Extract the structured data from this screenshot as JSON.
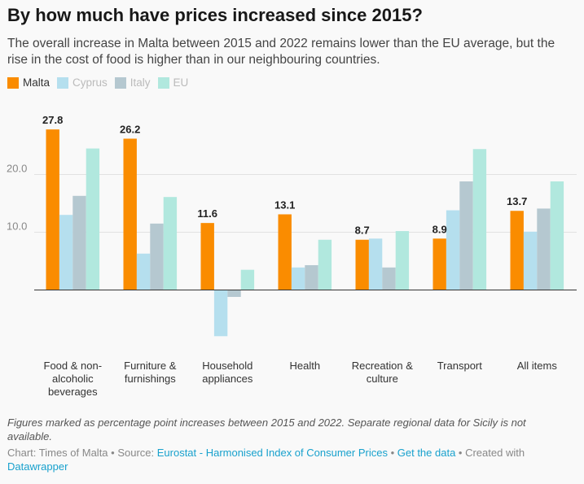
{
  "title": "By how much have prices increased since 2015?",
  "subtitle": "The overall increase in Malta between 2015 and 2022 remains lower than the EU average, but the rise in the cost of food is higher than in our neighbouring countries.",
  "legend": [
    {
      "name": "Malta",
      "color": "#fa8c00"
    },
    {
      "name": "Cyprus",
      "color": "#b5dfee"
    },
    {
      "name": "Italy",
      "color": "#b5c8d0"
    },
    {
      "name": "EU",
      "color": "#b1e8de"
    }
  ],
  "chart_data": {
    "type": "bar",
    "categories": [
      "Food & non-alcoholic beverages",
      "Furniture & furnishings",
      "Household appliances",
      "Health",
      "Recreation & culture",
      "Transport",
      "All items"
    ],
    "category_label_lines": [
      [
        "Food & non-",
        "alcoholic",
        "beverages"
      ],
      [
        "Furniture &",
        "furnishings"
      ],
      [
        "Household",
        "appliances"
      ],
      [
        "Health"
      ],
      [
        "Recreation &",
        "culture"
      ],
      [
        "Transport"
      ],
      [
        "All items"
      ]
    ],
    "series": [
      {
        "name": "Malta",
        "values": [
          27.8,
          26.2,
          11.6,
          13.1,
          8.7,
          8.9,
          13.7
        ],
        "labels": [
          "27.8",
          "26.2",
          "11.6",
          "13.1",
          "8.7",
          "8.9",
          "13.7"
        ]
      },
      {
        "name": "Cyprus",
        "values": [
          13.0,
          6.3,
          -8.0,
          3.9,
          8.9,
          13.8,
          10.1
        ]
      },
      {
        "name": "Italy",
        "values": [
          16.3,
          11.5,
          -1.2,
          4.3,
          3.9,
          18.8,
          14.1
        ]
      },
      {
        "name": "EU",
        "values": [
          24.5,
          16.1,
          3.5,
          8.7,
          10.2,
          24.4,
          18.8
        ]
      }
    ],
    "yticks": [
      10,
      20
    ],
    "ytick_labels": [
      "10.0",
      "20.0"
    ],
    "ylim": [
      -8,
      28
    ],
    "grid": true,
    "legend_position": "top-left"
  },
  "notes": "Figures marked as percentage point increases between 2015 and 2022. Separate regional data for Sicily is not available.",
  "footer": {
    "prefix": "Chart: Times of Malta • Source: ",
    "source_link": "Eurostat - Harmonised Index of Consumer Prices",
    "sep": " • ",
    "data_link": "Get the data",
    "created": " • Created with ",
    "tool_link": "Datawrapper"
  }
}
